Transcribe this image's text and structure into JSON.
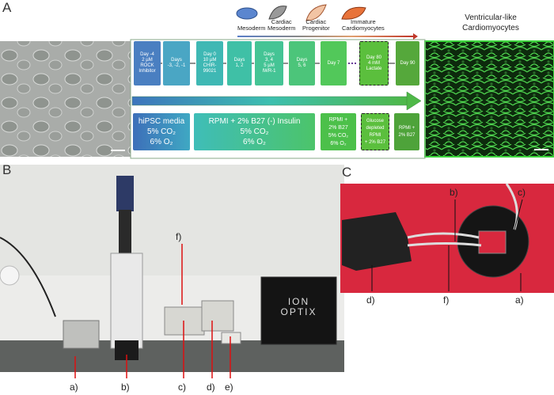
{
  "panel_a": {
    "label": "A",
    "stages": [
      [
        "Mesoderm"
      ],
      [
        "Cardiac",
        "Mesoderm"
      ],
      [
        "Cardiac",
        "Progenitor"
      ],
      [
        "Immature",
        "Cardiomyocytes"
      ]
    ],
    "result": [
      "Ventricular-like",
      "Cardiomyocytes"
    ],
    "steps": [
      [
        "Day -4",
        "2 µM",
        "ROCK",
        "Inhibitor"
      ],
      [
        "Days",
        "-3, -2, -1"
      ],
      [
        "Day 0",
        "10 µM",
        "CHIR-",
        "99021"
      ],
      [
        "Days",
        "1, 2"
      ],
      [
        "Days",
        "3, 4",
        "5 µM",
        "IWR-1"
      ],
      [
        "Days",
        "5, 6"
      ],
      [
        "Day 7"
      ],
      [
        "Day 80",
        "4 mM",
        "Lactate"
      ],
      [
        "Day 90"
      ]
    ],
    "media": [
      [
        "hiPSC media",
        "5% CO₂",
        "6% O₂"
      ],
      [
        "RPMI + 2% B27 (-) Insulin",
        "5% CO₂",
        "6% O₂"
      ],
      [
        "RPMI +",
        "2% B27",
        "5% CO₂",
        "6% O₂"
      ],
      [
        "Glucose",
        "depleted",
        "RPMI",
        "+ 2% B27"
      ],
      [
        "RPMI +",
        "2% B27"
      ]
    ]
  },
  "panel_b": {
    "label": "B",
    "monitor": [
      "ION",
      "OPTIX"
    ],
    "callouts": [
      "a)",
      "b)",
      "c)",
      "d)",
      "e)",
      "f)"
    ]
  },
  "panel_c": {
    "label": "C",
    "callouts": [
      "a)",
      "b)",
      "c)",
      "d)",
      "f)"
    ]
  }
}
